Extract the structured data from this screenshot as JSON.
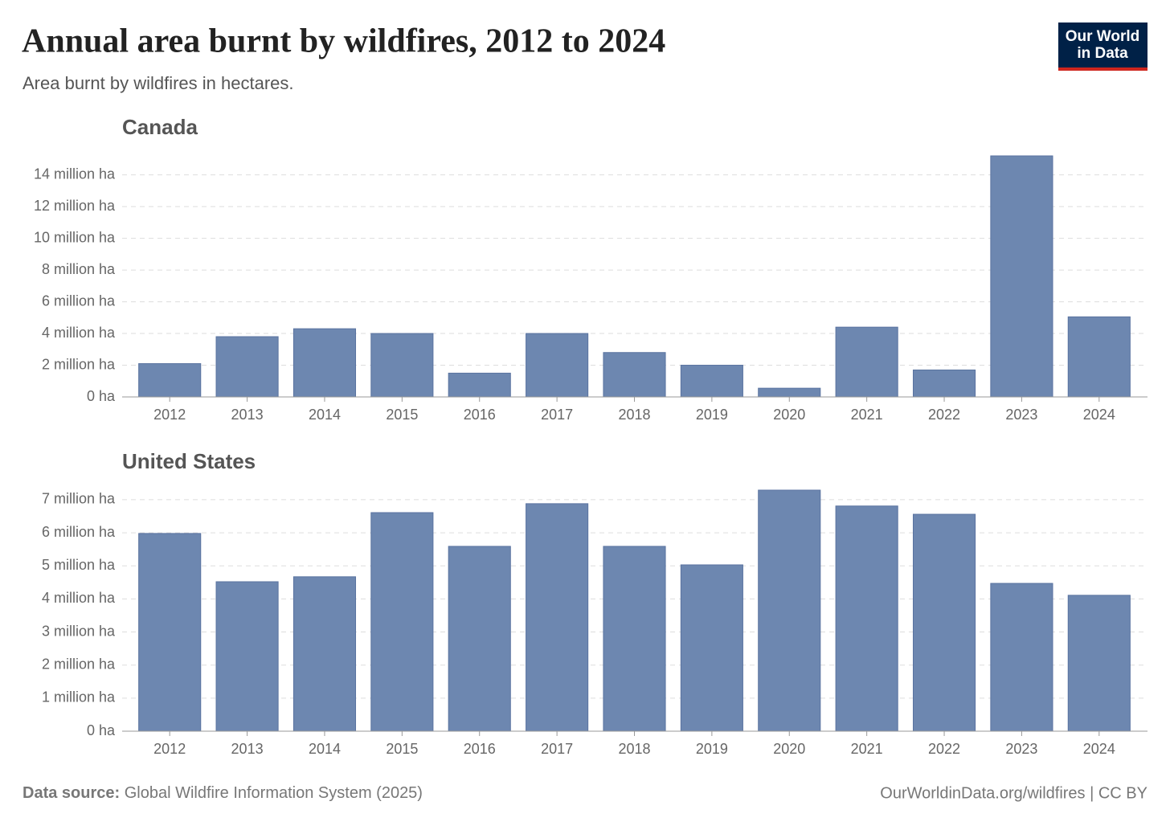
{
  "title": "Annual area burnt by wildfires, 2012 to 2024",
  "subtitle": "Area burnt by wildfires in hectares.",
  "logo": [
    "Our World",
    "in Data"
  ],
  "source_label": "Data source:",
  "source": "Global Wildfire Information System (2025)",
  "url": "OurWorldinData.org/wildfires | CC BY",
  "chart_data": [
    {
      "type": "bar",
      "title": "Canada",
      "color": "#6d87b0",
      "grid": true,
      "categories": [
        "2012",
        "2013",
        "2014",
        "2015",
        "2016",
        "2017",
        "2018",
        "2019",
        "2020",
        "2021",
        "2022",
        "2023",
        "2024"
      ],
      "values": [
        2100000,
        3800000,
        4300000,
        4000000,
        1500000,
        4000000,
        2800000,
        2000000,
        550000,
        4400000,
        1700000,
        15200000,
        5050000
      ],
      "ylim": [
        0,
        15200000
      ],
      "yticks": [
        {
          "value": 0,
          "label": "0 ha"
        },
        {
          "value": 2000000,
          "label": "2 million ha"
        },
        {
          "value": 4000000,
          "label": "4 million ha"
        },
        {
          "value": 6000000,
          "label": "6 million ha"
        },
        {
          "value": 8000000,
          "label": "8 million ha"
        },
        {
          "value": 10000000,
          "label": "10 million ha"
        },
        {
          "value": 12000000,
          "label": "12 million ha"
        },
        {
          "value": 14000000,
          "label": "14 million ha"
        }
      ]
    },
    {
      "type": "bar",
      "title": "United States",
      "color": "#6d87b0",
      "grid": true,
      "categories": [
        "2012",
        "2013",
        "2014",
        "2015",
        "2016",
        "2017",
        "2018",
        "2019",
        "2020",
        "2021",
        "2022",
        "2023",
        "2024"
      ],
      "values": [
        5980000,
        4520000,
        4670000,
        6610000,
        5590000,
        6880000,
        5590000,
        5030000,
        7290000,
        6810000,
        6560000,
        4470000,
        4110000
      ],
      "ylim": [
        0,
        7290000
      ],
      "yticks": [
        {
          "value": 0,
          "label": "0 ha"
        },
        {
          "value": 1000000,
          "label": "1 million ha"
        },
        {
          "value": 2000000,
          "label": "2 million ha"
        },
        {
          "value": 3000000,
          "label": "3 million ha"
        },
        {
          "value": 4000000,
          "label": "4 million ha"
        },
        {
          "value": 5000000,
          "label": "5 million ha"
        },
        {
          "value": 6000000,
          "label": "6 million ha"
        },
        {
          "value": 7000000,
          "label": "7 million ha"
        }
      ]
    }
  ]
}
